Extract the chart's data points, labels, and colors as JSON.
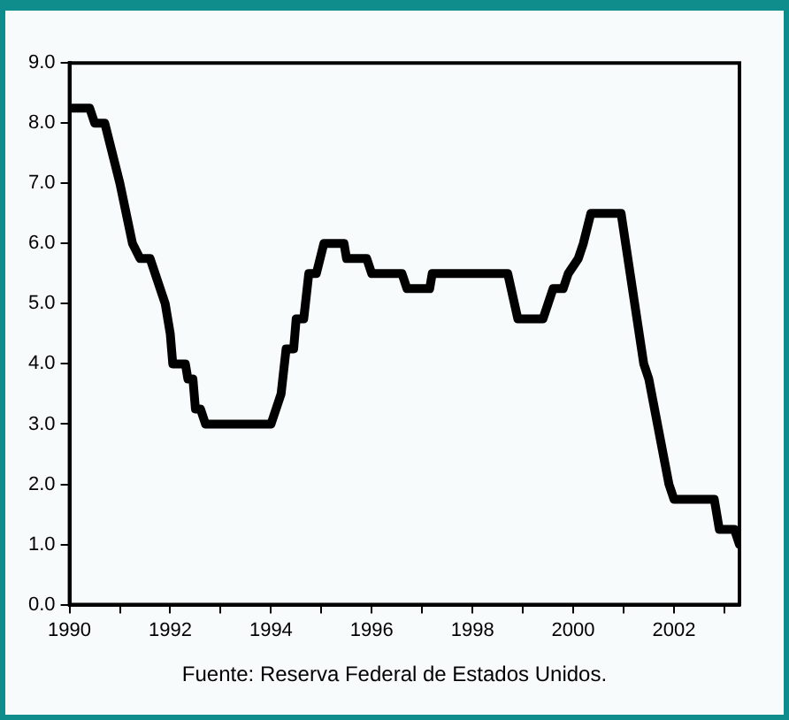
{
  "chart_data": {
    "type": "line",
    "annotations": [
      "Fuente: Reserva Federal de Estados Unidos."
    ],
    "x": [
      1990.0,
      1990.4,
      1990.5,
      1990.7,
      1991.0,
      1991.25,
      1991.4,
      1991.6,
      1991.9,
      1992.0,
      1992.05,
      1992.3,
      1992.35,
      1992.45,
      1992.5,
      1992.6,
      1992.7,
      1994.0,
      1994.2,
      1994.3,
      1994.45,
      1994.5,
      1994.65,
      1994.75,
      1994.9,
      1995.05,
      1995.45,
      1995.5,
      1995.9,
      1996.0,
      1996.6,
      1996.7,
      1997.15,
      1997.2,
      1998.7,
      1998.9,
      1999.4,
      1999.5,
      1999.6,
      1999.8,
      1999.9,
      2000.1,
      2000.2,
      2000.35,
      2000.95,
      2001.4,
      2001.5,
      2001.9,
      2002.0,
      2002.8,
      2002.9,
      2003.2,
      2003.3
    ],
    "series": [
      {
        "color": "#000000",
        "values": [
          8.25,
          8.25,
          8.0,
          8.0,
          7.0,
          6.0,
          5.75,
          5.75,
          5.0,
          4.5,
          4.0,
          4.0,
          3.75,
          3.75,
          3.25,
          3.25,
          3.0,
          3.0,
          3.5,
          4.25,
          4.25,
          4.75,
          4.75,
          5.5,
          5.5,
          6.0,
          6.0,
          5.75,
          5.75,
          5.5,
          5.5,
          5.25,
          5.25,
          5.5,
          5.5,
          4.75,
          4.75,
          5.0,
          5.25,
          5.25,
          5.5,
          5.75,
          6.0,
          6.5,
          6.5,
          4.0,
          3.75,
          2.0,
          1.75,
          1.75,
          1.25,
          1.25,
          1.0
        ]
      }
    ],
    "xlim": [
      1990,
      2003.3
    ],
    "xticks": [
      1990,
      {
        "value": 1991,
        "label": null
      },
      1992,
      {
        "value": 1993,
        "label": null
      },
      1994,
      {
        "value": 1995,
        "label": null
      },
      1996,
      {
        "value": 1997,
        "label": null
      },
      1998,
      {
        "value": 1999,
        "label": null
      },
      2000,
      {
        "value": 2001,
        "label": null
      },
      2002,
      {
        "value": 2003,
        "label": null
      }
    ],
    "ylim": [
      0,
      9
    ],
    "yticks": [
      {
        "value": 0,
        "label": "0.0"
      },
      {
        "value": 1,
        "label": "1.0"
      },
      {
        "value": 2,
        "label": "2.0"
      },
      {
        "value": 3,
        "label": "3.0"
      },
      {
        "value": 4,
        "label": "4.0"
      },
      {
        "value": 5,
        "label": "5.0"
      },
      {
        "value": 6,
        "label": "6.0"
      },
      {
        "value": 7,
        "label": "7.0"
      },
      {
        "value": 8,
        "label": "8.0"
      },
      {
        "value": 9,
        "label": "9.0"
      }
    ],
    "grid": false,
    "legend": false,
    "marker": "none",
    "line_style": "solid"
  }
}
